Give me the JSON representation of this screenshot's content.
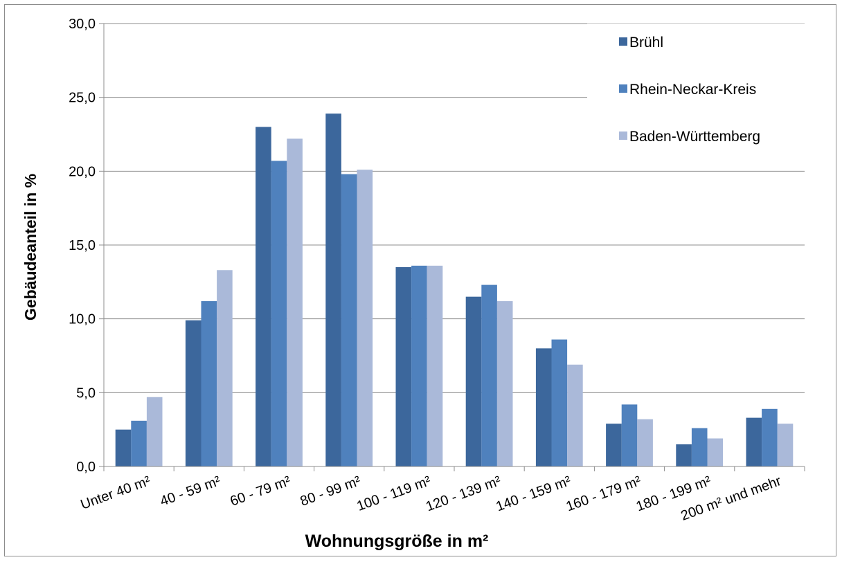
{
  "chart_data": {
    "type": "bar",
    "xlabel": "Wohnungsgröße in m²",
    "ylabel": "Gebäudeanteil in %",
    "ylim": [
      0,
      30
    ],
    "yticks": [
      "0,0",
      "5,0",
      "10,0",
      "15,0",
      "20,0",
      "25,0",
      "30,0"
    ],
    "grid": true,
    "legend_position": "top-right",
    "categories": [
      "Unter 40 m²",
      "40 - 59  m²",
      "60 - 79 m²",
      "80 - 99 m²",
      "100 - 119 m²",
      "120 - 139 m²",
      "140 - 159 m²",
      "160 - 179 m²",
      "180 - 199 m²",
      "200 m² und mehr"
    ],
    "series": [
      {
        "name": "Brühl",
        "color": "#3c679c",
        "values": [
          2.5,
          9.9,
          23.0,
          23.9,
          13.5,
          11.5,
          8.0,
          2.9,
          1.5,
          3.3
        ]
      },
      {
        "name": "Rhein-Neckar-Kreis",
        "color": "#4f81bd",
        "values": [
          3.1,
          11.2,
          20.7,
          19.8,
          13.6,
          12.3,
          8.6,
          4.2,
          2.6,
          3.9
        ]
      },
      {
        "name": "Baden-Württemberg",
        "color": "#aab9d9",
        "values": [
          4.7,
          13.3,
          22.2,
          20.1,
          13.6,
          11.2,
          6.9,
          3.2,
          1.9,
          2.9
        ]
      }
    ]
  }
}
